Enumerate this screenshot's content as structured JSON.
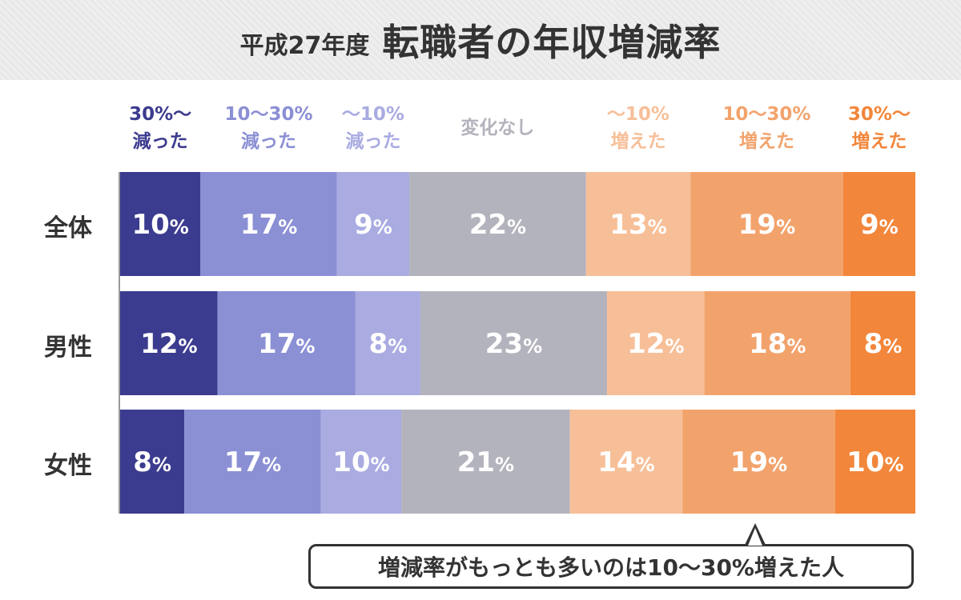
{
  "title": {
    "year": "平成27年度",
    "main": "転職者の年収増減率"
  },
  "callout": "増減率がもっとも多いのは10〜30%増えた人",
  "chart_data": {
    "type": "bar",
    "orientation": "horizontal-stacked-100",
    "categories": [
      "全体",
      "男性",
      "女性"
    ],
    "series": [
      {
        "name": "30%〜\n減った",
        "color": "#3b3b8f",
        "label_color": "#3b3b8f",
        "values": [
          10,
          12,
          8
        ]
      },
      {
        "name": "10〜30%\n減った",
        "color": "#8b8fd4",
        "label_color": "#8b8fd4",
        "values": [
          17,
          17,
          17
        ]
      },
      {
        "name": "〜10%\n減った",
        "color": "#a9abe1",
        "label_color": "#a9abe1",
        "values": [
          9,
          8,
          10
        ]
      },
      {
        "name": "変化なし",
        "color": "#b3b3bd",
        "label_color": "#b3b3bd",
        "values": [
          22,
          23,
          21
        ]
      },
      {
        "name": "〜10%\n増えた",
        "color": "#f7bf98",
        "label_color": "#f7bf98",
        "values": [
          13,
          12,
          14
        ]
      },
      {
        "name": "10〜30%\n増えた",
        "color": "#f2a36c",
        "label_color": "#f2a36c",
        "values": [
          19,
          18,
          19
        ]
      },
      {
        "name": "30%〜\n増えた",
        "color": "#f2863b",
        "label_color": "#f2863b",
        "values": [
          9,
          8,
          10
        ]
      }
    ],
    "value_unit": "%",
    "legend_position": "top"
  }
}
